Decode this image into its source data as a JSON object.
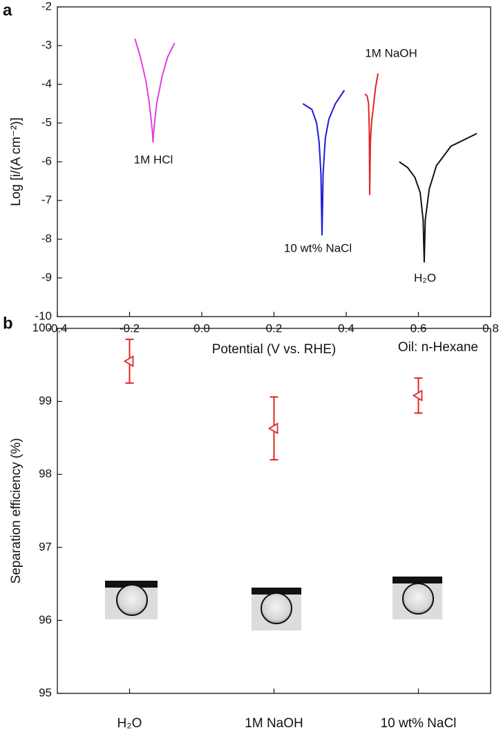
{
  "chart_data": [
    {
      "type": "line",
      "label": "a",
      "xlabel": "Potential (V vs. RHE)",
      "ylabel": "Log [i/(A cm⁻²)]",
      "xlim": [
        -0.4,
        0.8
      ],
      "ylim": [
        -10,
        -2
      ],
      "xticks": [
        -0.4,
        -0.2,
        {
          "value": 0,
          "label": "0.0"
        },
        0.2,
        0.4,
        0.6,
        0.8
      ],
      "yticks": [
        -10,
        -9,
        -8,
        -7,
        -6,
        -5,
        -4,
        -3,
        -2
      ],
      "series": [
        {
          "name": "1M HCl",
          "color": "#e23ee2",
          "x": [
            -0.185,
            -0.17,
            -0.155,
            -0.145,
            -0.137,
            -0.135,
            -0.133,
            -0.125,
            -0.11,
            -0.095,
            -0.075
          ],
          "values": [
            -2.82,
            -3.3,
            -3.9,
            -4.5,
            -5.2,
            -5.5,
            -5.2,
            -4.5,
            -3.8,
            -3.3,
            -2.93
          ]
        },
        {
          "name": "10 wt% NaCl",
          "color": "#1a1ad6",
          "x": [
            0.28,
            0.305,
            0.318,
            0.325,
            0.33,
            0.333,
            0.336,
            0.342,
            0.352,
            0.37,
            0.395
          ],
          "values": [
            -4.5,
            -4.65,
            -5.0,
            -5.5,
            -6.3,
            -7.9,
            -6.3,
            -5.4,
            -4.9,
            -4.5,
            -4.15
          ]
        },
        {
          "name": "1M NaOH",
          "color": "#e02424",
          "x": [
            0.452,
            0.458,
            0.462,
            0.464,
            0.465,
            0.467,
            0.47,
            0.475,
            0.481,
            0.488
          ],
          "values": [
            -4.25,
            -4.3,
            -4.5,
            -5.2,
            -6.86,
            -5.5,
            -5.0,
            -4.6,
            -4.1,
            -3.72
          ]
        },
        {
          "name": "H₂O",
          "color": "#111111",
          "x": [
            0.547,
            0.57,
            0.59,
            0.605,
            0.613,
            0.616,
            0.619,
            0.63,
            0.65,
            0.69,
            0.762
          ],
          "values": [
            -6.0,
            -6.15,
            -6.4,
            -6.8,
            -7.5,
            -8.6,
            -7.5,
            -6.7,
            -6.1,
            -5.6,
            -5.27
          ]
        }
      ]
    },
    {
      "type": "scatter",
      "label": "b",
      "ylabel": "Separation efficiency (%)",
      "annotation": "Oil: n-Hexane",
      "categories": [
        "H₂O",
        "1M NaOH",
        "10 wt% NaCl"
      ],
      "values": [
        99.55,
        98.63,
        99.08
      ],
      "errors": [
        0.3,
        0.43,
        0.24
      ],
      "color": "#e02424",
      "ylim": [
        95,
        100
      ],
      "yticks": [
        95,
        96,
        97,
        98,
        99,
        100
      ]
    }
  ]
}
